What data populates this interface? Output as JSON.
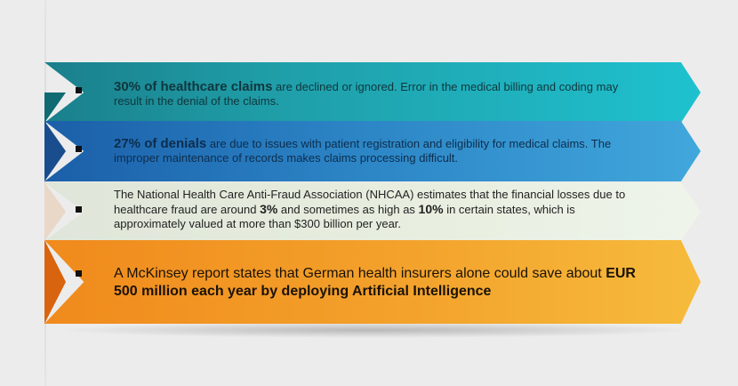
{
  "items": [
    {
      "highlight": "30% of healthcare claims",
      "text": " are declined or ignored. Error in the medical billing and coding may result in the denial of the claims.",
      "color": "#1fa5b0"
    },
    {
      "highlight": "27% of denials",
      "text": " are due to issues with patient registration and eligibility for medical claims. The improper maintenance of records makes claims processing difficult.",
      "color": "#2b83c4"
    },
    {
      "part1": "The National Health Care Anti-Fraud Association (NHCAA) estimates that the financial losses due to healthcare fraud are around ",
      "pct1": "3%",
      "part2": " and sometimes as high as ",
      "pct2": "10%",
      "part3": " in certain states, which is approximately valued at more than $300 billion per year.",
      "color": "#e8efe0"
    },
    {
      "text": "A McKinsey report states that German health insurers alone could save about ",
      "highlight": "EUR 500 million each year by deploying Artificial Intelligence",
      "color": "#f3a22c"
    }
  ]
}
